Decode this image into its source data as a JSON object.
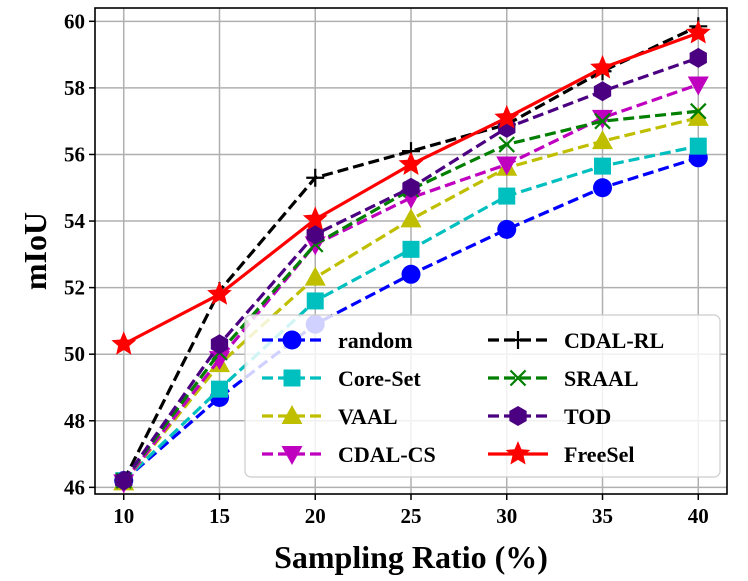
{
  "chart_data": {
    "type": "line",
    "title": "",
    "xlabel": "Sampling Ratio (%)",
    "ylabel": "mIoU",
    "x": [
      10,
      15,
      20,
      25,
      30,
      35,
      40
    ],
    "xlim": [
      8.5,
      41.5
    ],
    "ylim": [
      45.8,
      60.4
    ],
    "xticks": [
      10,
      15,
      20,
      25,
      30,
      35,
      40
    ],
    "yticks": [
      46,
      48,
      50,
      52,
      54,
      56,
      58,
      60
    ],
    "grid": true,
    "legend_position": "bottom-right, two columns",
    "series": [
      {
        "name": "random",
        "color": "#0000ff",
        "dash": "dashed",
        "marker": "circle",
        "values": [
          46.2,
          48.7,
          50.9,
          52.4,
          53.75,
          55.0,
          55.9
        ]
      },
      {
        "name": "Core-Set",
        "color": "#00bfbf",
        "dash": "dashed",
        "marker": "square",
        "values": [
          46.2,
          48.95,
          51.6,
          53.15,
          54.75,
          55.65,
          56.25
        ]
      },
      {
        "name": "VAAL",
        "color": "#bfbf00",
        "dash": "dashed",
        "marker": "triangle-up",
        "values": [
          46.15,
          49.7,
          52.3,
          54.05,
          55.6,
          56.4,
          57.1
        ]
      },
      {
        "name": "CDAL-CS",
        "color": "#bf00bf",
        "dash": "dashed",
        "marker": "triangle-down",
        "values": [
          46.15,
          49.85,
          53.3,
          54.7,
          55.7,
          57.1,
          58.1
        ]
      },
      {
        "name": "CDAL-RL",
        "color": "#000000",
        "dash": "dashed",
        "marker": "plus",
        "values": [
          46.2,
          51.9,
          55.3,
          56.1,
          56.9,
          58.5,
          59.85
        ]
      },
      {
        "name": "SRAAL",
        "color": "#007f00",
        "dash": "dashed",
        "marker": "x",
        "values": [
          46.2,
          50.05,
          53.3,
          54.95,
          56.3,
          57.0,
          57.3
        ]
      },
      {
        "name": "TOD",
        "color": "#4b0082",
        "dash": "dashed",
        "marker": "hexagon",
        "values": [
          46.2,
          50.3,
          53.6,
          55.0,
          56.8,
          57.9,
          58.9
        ]
      },
      {
        "name": "FreeSel",
        "color": "#ff0000",
        "dash": "solid",
        "marker": "star",
        "values": [
          50.3,
          51.8,
          54.05,
          55.7,
          57.1,
          58.6,
          59.65
        ]
      }
    ]
  }
}
